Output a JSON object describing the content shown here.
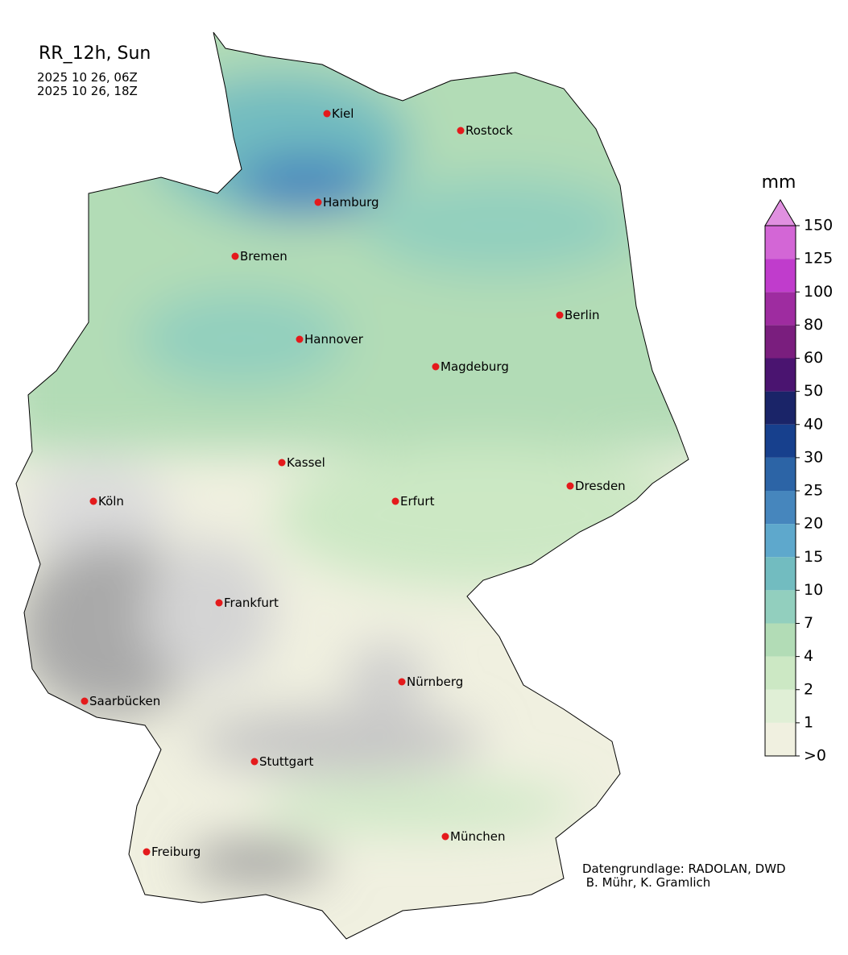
{
  "header": {
    "title": "RR_12h, Sun",
    "dates": [
      "2025 10 26, 06Z",
      "2025 10 26, 18Z"
    ]
  },
  "cities": [
    "Kiel",
    "Rostock",
    "Hamburg",
    "Bremen",
    "Berlin",
    "Hannover",
    "Magdeburg",
    "Kassel",
    "Köln",
    "Erfurt",
    "Dresden",
    "Frankfurt",
    "Nürnberg",
    "Saarbücken",
    "Stuttgart",
    "München",
    "Freiburg"
  ],
  "legend": {
    "unit": "mm",
    "labels": [
      ">0",
      "1",
      "2",
      "4",
      "7",
      "10",
      "15",
      "20",
      "25",
      "30",
      "40",
      "50",
      "60",
      "80",
      "100",
      "125",
      "150"
    ],
    "colors": [
      "#f0f0e0",
      "#e0efd6",
      "#cce8c4",
      "#b2dcb6",
      "#92cfbe",
      "#72bcc0",
      "#5ea8cc",
      "#4686bd",
      "#2c64a6",
      "#17408d",
      "#1a2468",
      "#4a1470",
      "#7a1e7e",
      "#9e2ca0",
      "#c03ccc",
      "#d366d6",
      "#e090e0"
    ]
  },
  "credits": [
    "Datengrundlage: RADOLAN, DWD",
    " B. Mühr, K. Gramlich"
  ]
}
